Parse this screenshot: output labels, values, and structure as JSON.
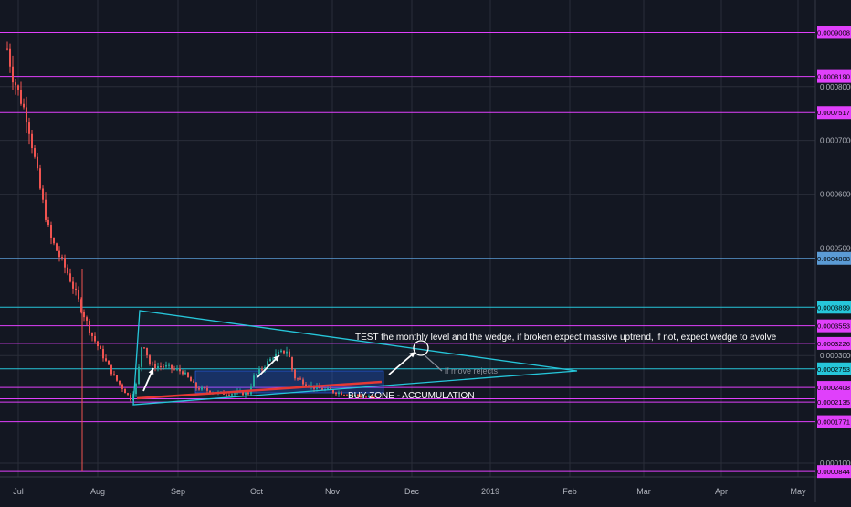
{
  "chart_data": {
    "type": "candlestick",
    "x_ticks": [
      "Jul",
      "Aug",
      "Sep",
      "Oct",
      "Nov",
      "Dec",
      "2019",
      "Feb",
      "Mar",
      "Apr",
      "May"
    ],
    "y_ticks": [
      "0.0008000",
      "0.0007000",
      "0.0006000",
      "0.0005000",
      "0.0003000",
      "0.0001000"
    ],
    "price_levels": [
      {
        "value": "0.0009008",
        "color": "#e040fb"
      },
      {
        "value": "0.0008190",
        "color": "#e040fb"
      },
      {
        "value": "0.0007517",
        "color": "#e040fb"
      },
      {
        "value": "0.0004808",
        "color": "#5b9bd5"
      },
      {
        "value": "0.0003899",
        "color": "#26c6da"
      },
      {
        "value": "0.0003553",
        "color": "#e040fb"
      },
      {
        "value": "0.0003226",
        "color": "#e040fb"
      },
      {
        "value": "0.0002753",
        "color": "#26c6da"
      },
      {
        "value": "0.0002408",
        "color": "#e040fb"
      },
      {
        "value": "0.0002197",
        "color": "#e040fb"
      },
      {
        "value": "0.0002135",
        "color": "#e040fb"
      },
      {
        "value": "0.0001771",
        "color": "#e040fb"
      },
      {
        "value": "0.0000844",
        "color": "#e040fb"
      }
    ],
    "ylim": [
      7.45e-05,
      0.000961
    ],
    "annotations": [
      "TEST the monthly level and the wedge, if broken expect massive uptrend, if not, expect wedge to evolve",
      "BUY ZONE - ACCUMULATION",
      "if move rejects"
    ],
    "colors": {
      "up": "#26a69a",
      "down": "#ef5350",
      "background": "#131722",
      "grid": "#2a2e39"
    }
  }
}
